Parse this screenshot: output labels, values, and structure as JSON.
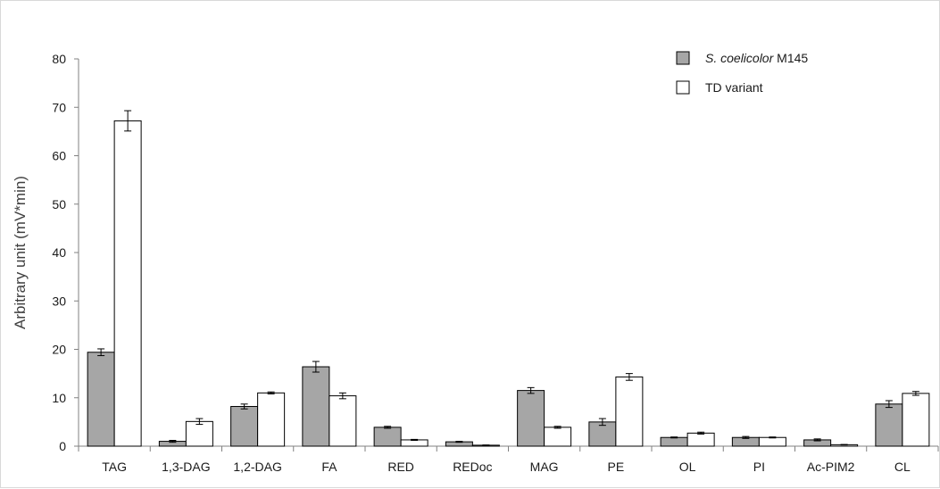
{
  "chart_data": {
    "type": "bar",
    "title": "",
    "xlabel": "",
    "ylabel": "Arbitrary unit (mV*min)",
    "ylim": [
      0,
      80
    ],
    "yticks": [
      0,
      10,
      20,
      30,
      40,
      50,
      60,
      70,
      80
    ],
    "grid": false,
    "legend_position": "top-right",
    "categories": [
      "TAG",
      "1,3-DAG",
      "1,2-DAG",
      "FA",
      "RED",
      "REDoc",
      "MAG",
      "PE",
      "OL",
      "PI",
      "Ac-PIM2",
      "CL"
    ],
    "series": [
      {
        "name_italic": "S. coelicolor",
        "name_rest": " M145",
        "color": "#a6a6a6",
        "values": [
          19.4,
          1.0,
          8.2,
          16.4,
          3.9,
          0.9,
          11.5,
          5.0,
          1.8,
          1.8,
          1.3,
          8.7
        ],
        "errors": [
          0.7,
          0.2,
          0.5,
          1.1,
          0.2,
          0.1,
          0.6,
          0.7,
          0.1,
          0.2,
          0.2,
          0.7
        ]
      },
      {
        "name": "TD variant",
        "color": "#ffffff",
        "values": [
          67.2,
          5.1,
          11.0,
          10.4,
          1.3,
          0.2,
          3.9,
          14.3,
          2.7,
          1.8,
          0.3,
          10.9
        ],
        "errors": [
          2.1,
          0.6,
          0.2,
          0.6,
          0.1,
          0.05,
          0.2,
          0.7,
          0.2,
          0.1,
          0.05,
          0.4
        ]
      }
    ]
  }
}
